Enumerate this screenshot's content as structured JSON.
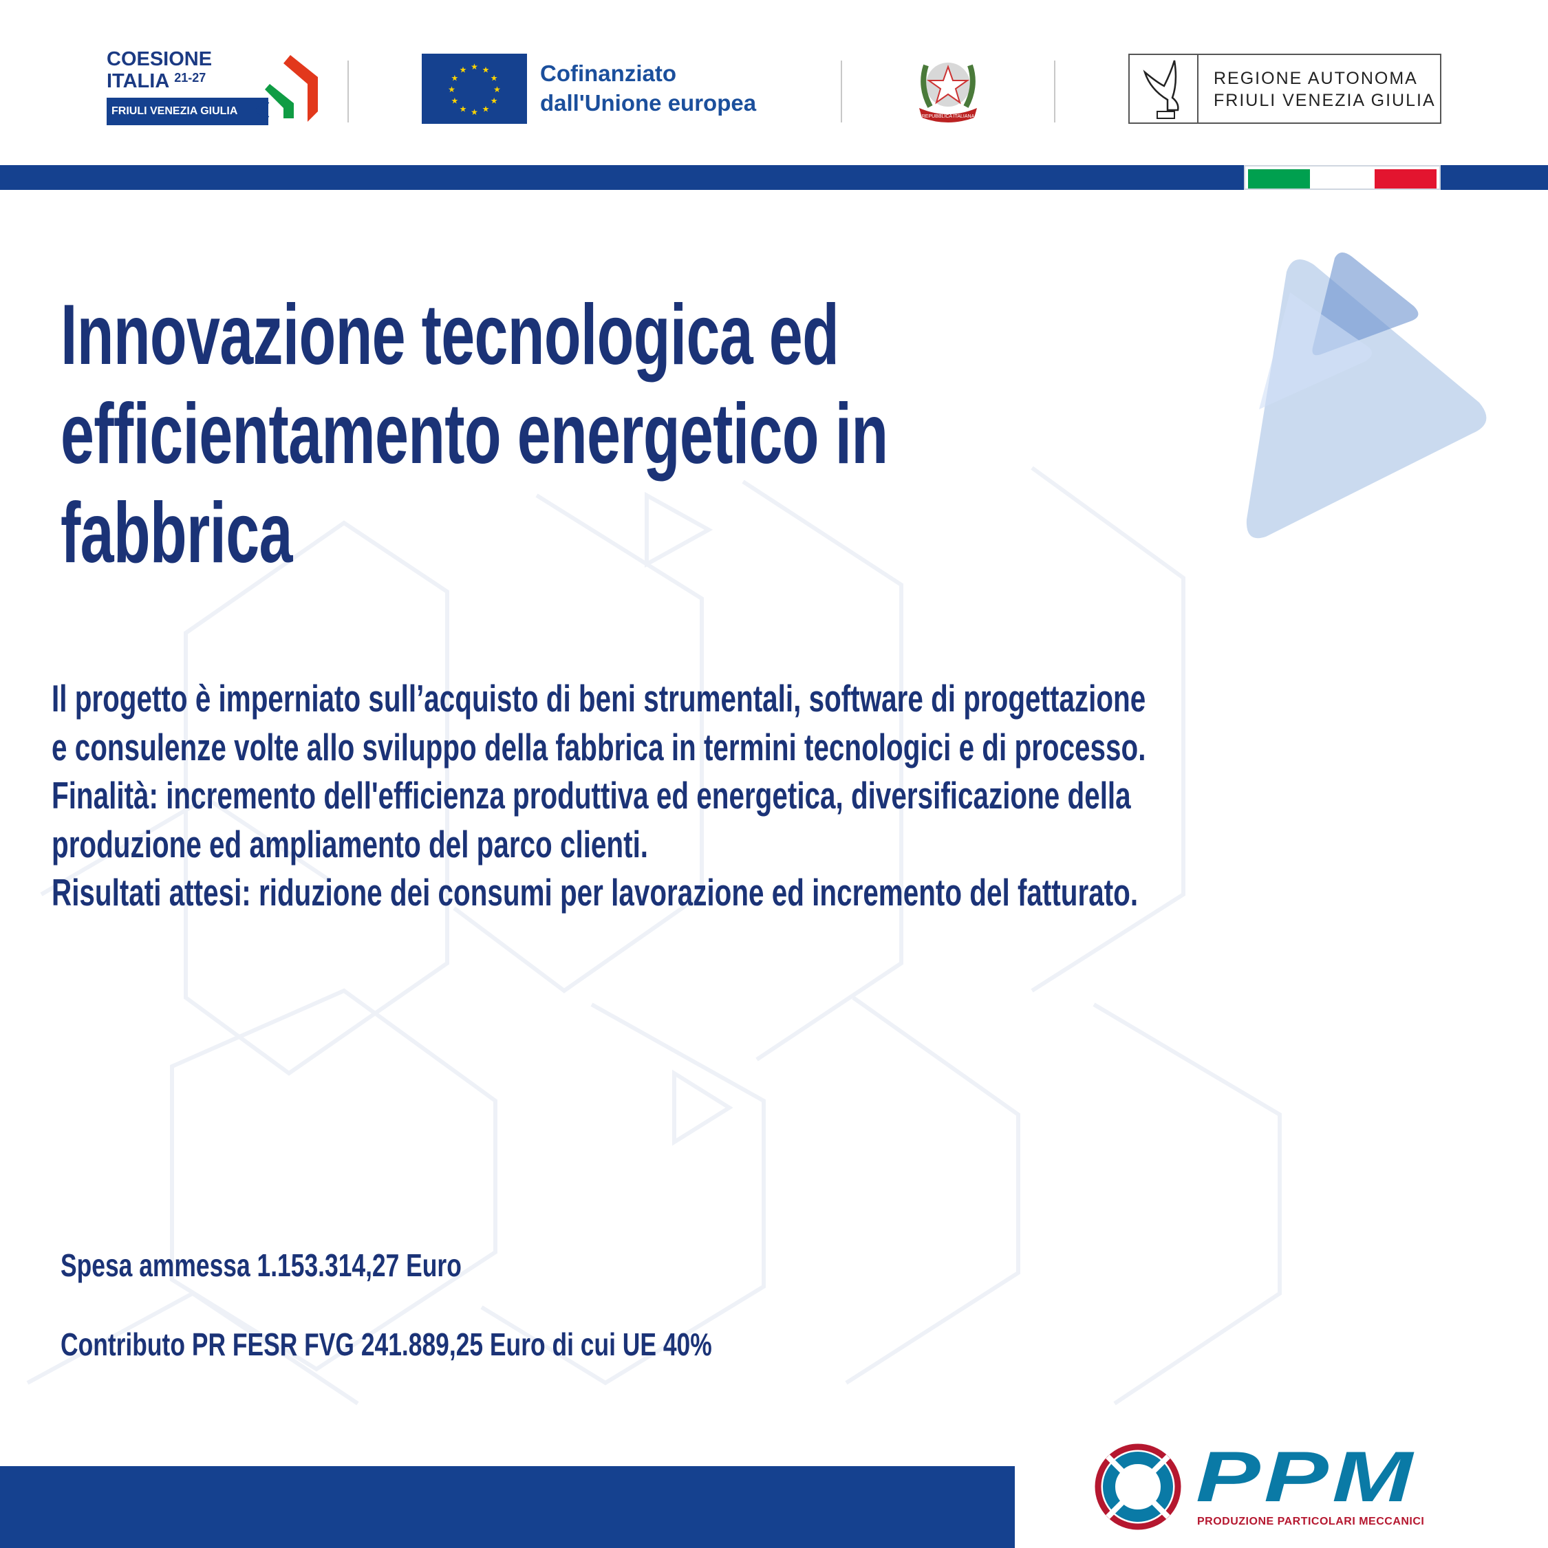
{
  "header": {
    "coesione": {
      "line1": "COESIONE",
      "line2": "ITALIA",
      "years": "21-27",
      "region": "FRIULI VENEZIA GIULIA"
    },
    "eu": {
      "line1": "Cofinanziato",
      "line2": "dall'Unione europea"
    },
    "emblem": {
      "text": "REPUBBLICA ITALIANA"
    },
    "region": {
      "line1": "REGIONE AUTONOMA",
      "line2": "FRIULI VENEZIA GIULIA"
    }
  },
  "colors": {
    "navy": "#15418f",
    "text": "#1b3a83",
    "green": "#00a04f",
    "red": "#e3152f",
    "ppm_teal": "#0a7aa6",
    "ppm_red": "#b5172f"
  },
  "title": [
    "Innovazione tecnologica ed",
    "efficientamento energetico in",
    "fabbrica"
  ],
  "description": [
    "Il progetto è imperniato sull’acquisto di beni strumentali, software di progettazione",
    "e consulenze volte allo sviluppo della fabbrica in termini tecnologici e di processo.",
    "Finalità: incremento dell'efficienza produttiva ed energetica, diversificazione della",
    "produzione ed ampliamento del parco clienti.",
    "Risultati attesi: riduzione dei consumi per lavorazione ed incremento del fatturato."
  ],
  "funding": {
    "spesa": "Spesa ammessa 1.153.314,27 Euro",
    "contributo": "Contributo PR FESR FVG 241.889,25 Euro di cui UE 40%"
  },
  "footer_logo": {
    "name": "PPM",
    "tagline": "PRODUZIONE PARTICOLARI MECCANICI"
  }
}
